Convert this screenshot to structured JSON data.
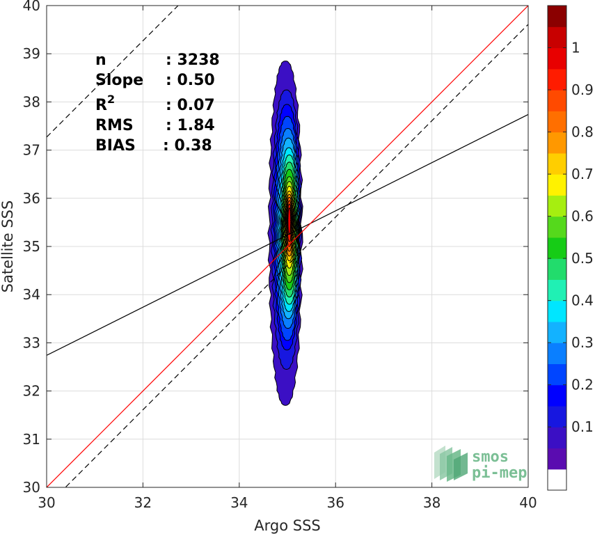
{
  "chart_data": {
    "type": "heatmap",
    "title": "",
    "xlabel": "Argo SSS",
    "ylabel": "Satellite SSS",
    "xlim": [
      30,
      40
    ],
    "ylim": [
      30,
      40
    ],
    "xticks": [
      "30",
      "32",
      "34",
      "36",
      "38",
      "40"
    ],
    "yticks": [
      "30",
      "31",
      "32",
      "33",
      "34",
      "35",
      "36",
      "37",
      "38",
      "39",
      "40"
    ],
    "grid": true,
    "stats": [
      {
        "label": "n",
        "value": ": 3238"
      },
      {
        "label": "Slope",
        "value": ": 0.50"
      },
      {
        "label": "R",
        "sup": "2",
        "value": ": 0.07"
      },
      {
        "label": "RMS",
        "value": ": 1.84"
      },
      {
        "label": "BIAS",
        "value": ": 0.38"
      }
    ],
    "lines": {
      "one_to_one": {
        "color": "#ff0000",
        "slope": 1,
        "intercept": 0
      },
      "regression": {
        "color": "#000000",
        "slope": 0.5,
        "intercept": 17.74
      },
      "upper_bound": {
        "style": "dashed",
        "slope": 1,
        "intercept": 7.27
      },
      "lower_bound": {
        "style": "dashed",
        "slope": 1,
        "intercept": -0.39
      }
    },
    "density": {
      "levels": [
        0.05,
        0.1,
        0.15,
        0.2,
        0.25,
        0.3,
        0.35,
        0.4,
        0.45,
        0.5,
        0.55,
        0.6,
        0.65,
        0.7,
        0.75,
        0.8,
        0.85,
        0.9,
        0.95
      ],
      "contours": [
        {
          "level": 0.05,
          "xc": 34.96,
          "y_low": 31.7,
          "y_high": 38.85,
          "half_width": 0.34
        },
        {
          "level": 0.1,
          "xc": 34.98,
          "y_low": 32.45,
          "y_high": 38.25,
          "half_width": 0.3
        },
        {
          "level": 0.15,
          "xc": 34.99,
          "y_low": 32.85,
          "y_high": 37.95,
          "half_width": 0.27
        },
        {
          "level": 0.2,
          "xc": 35.0,
          "y_low": 33.05,
          "y_high": 37.7,
          "half_width": 0.25
        },
        {
          "level": 0.25,
          "xc": 35.01,
          "y_low": 33.3,
          "y_high": 37.45,
          "half_width": 0.23
        },
        {
          "level": 0.3,
          "xc": 35.02,
          "y_low": 33.5,
          "y_high": 37.25,
          "half_width": 0.21
        },
        {
          "level": 0.35,
          "xc": 35.03,
          "y_low": 33.65,
          "y_high": 37.05,
          "half_width": 0.19
        },
        {
          "level": 0.4,
          "xc": 35.04,
          "y_low": 33.8,
          "y_high": 36.9,
          "half_width": 0.175
        },
        {
          "level": 0.45,
          "xc": 35.04,
          "y_low": 33.95,
          "y_high": 36.75,
          "half_width": 0.16
        },
        {
          "level": 0.5,
          "xc": 35.04,
          "y_low": 34.1,
          "y_high": 36.6,
          "half_width": 0.145
        },
        {
          "level": 0.55,
          "xc": 35.04,
          "y_low": 34.25,
          "y_high": 36.45,
          "half_width": 0.13
        },
        {
          "level": 0.6,
          "xc": 35.04,
          "y_low": 34.4,
          "y_high": 36.35,
          "half_width": 0.115
        },
        {
          "level": 0.65,
          "xc": 35.04,
          "y_low": 34.55,
          "y_high": 36.25,
          "half_width": 0.1
        },
        {
          "level": 0.7,
          "xc": 35.04,
          "y_low": 34.7,
          "y_high": 36.15,
          "half_width": 0.088
        },
        {
          "level": 0.75,
          "xc": 35.04,
          "y_low": 34.8,
          "y_high": 36.08,
          "half_width": 0.076
        },
        {
          "level": 0.8,
          "xc": 35.04,
          "y_low": 34.9,
          "y_high": 36.02,
          "half_width": 0.064
        },
        {
          "level": 0.85,
          "xc": 35.04,
          "y_low": 35.0,
          "y_high": 35.95,
          "half_width": 0.052
        },
        {
          "level": 0.9,
          "xc": 35.04,
          "y_low": 35.1,
          "y_high": 35.88,
          "half_width": 0.04
        },
        {
          "level": 0.95,
          "xc": 35.04,
          "y_low": 35.25,
          "y_high": 35.8,
          "half_width": 0.028
        }
      ]
    },
    "colorbar": {
      "ticks": [
        "0.1",
        "0.2",
        "0.3",
        "0.4",
        "0.5",
        "0.6",
        "0.7",
        "0.8",
        "0.9",
        "1"
      ],
      "colors": [
        "#ffffff",
        "#5a0cb0",
        "#3b0fc4",
        "#1717e0",
        "#0000ff",
        "#0045ff",
        "#0a7fff",
        "#13b2ff",
        "#00e6ff",
        "#20f0b4",
        "#22dc6c",
        "#16cc16",
        "#55d91c",
        "#a6ee10",
        "#fff200",
        "#ffce00",
        "#ff9800",
        "#ff6f00",
        "#ff4a00",
        "#ff1c00",
        "#e80000",
        "#c80000",
        "#8b0000"
      ]
    }
  },
  "logo": {
    "line1": "smos",
    "line2": "pi-mep"
  }
}
